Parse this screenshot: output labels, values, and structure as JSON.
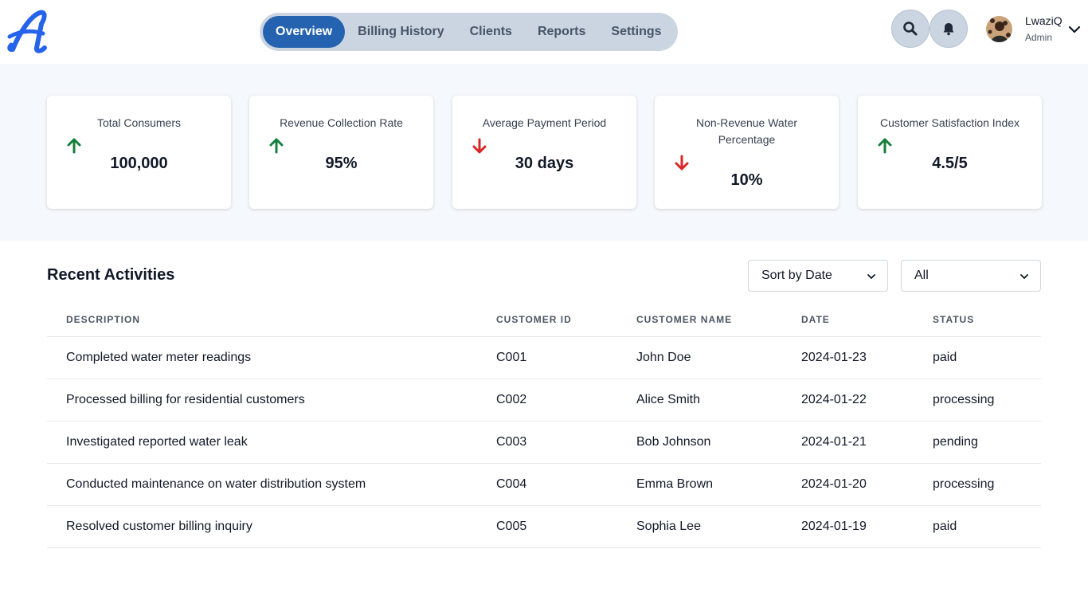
{
  "header": {
    "logo_icon": "script-a-logo",
    "nav_tabs": [
      {
        "label": "Overview",
        "active": true
      },
      {
        "label": "Billing History",
        "active": false
      },
      {
        "label": "Clients",
        "active": false
      },
      {
        "label": "Reports",
        "active": false
      },
      {
        "label": "Settings",
        "active": false
      }
    ],
    "search_icon": "search-icon",
    "bell_icon": "bell-icon",
    "user": {
      "name": "LwaziQ",
      "role": "Admin"
    }
  },
  "stats": [
    {
      "title": "Total Consumers",
      "value": "100,000",
      "trend": "up"
    },
    {
      "title": "Revenue Collection Rate",
      "value": "95%",
      "trend": "up"
    },
    {
      "title": "Average Payment Period",
      "value": "30 days",
      "trend": "down"
    },
    {
      "title": "Non-Revenue Water Percentage",
      "value": "10%",
      "trend": "down"
    },
    {
      "title": "Customer Satisfaction Index",
      "value": "4.5/5",
      "trend": "up"
    }
  ],
  "colors": {
    "accent": "#2563b0",
    "up": "#15803d",
    "down": "#dc2626",
    "nav_bg": "#cbd5e1"
  },
  "activities": {
    "title": "Recent Activities",
    "sort_select": "Sort by Date",
    "filter_select": "All",
    "columns": [
      "DESCRIPTION",
      "CUSTOMER ID",
      "CUSTOMER NAME",
      "DATE",
      "STATUS"
    ],
    "rows": [
      [
        "Completed water meter readings",
        "C001",
        "John Doe",
        "2024-01-23",
        "paid"
      ],
      [
        "Processed billing for residential customers",
        "C002",
        "Alice Smith",
        "2024-01-22",
        "processing"
      ],
      [
        "Investigated reported water leak",
        "C003",
        "Bob Johnson",
        "2024-01-21",
        "pending"
      ],
      [
        "Conducted maintenance on water distribution system",
        "C004",
        "Emma Brown",
        "2024-01-20",
        "processing"
      ],
      [
        "Resolved customer billing inquiry",
        "C005",
        "Sophia Lee",
        "2024-01-19",
        "paid"
      ]
    ]
  }
}
